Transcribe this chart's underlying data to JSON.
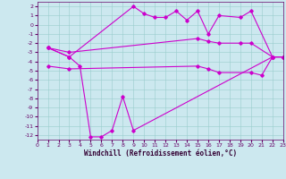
{
  "xlabel": "Windchill (Refroidissement éolien,°C)",
  "xlim": [
    0,
    23
  ],
  "ylim": [
    -12.5,
    2.5
  ],
  "yticks": [
    2,
    1,
    0,
    -1,
    -2,
    -3,
    -4,
    -5,
    -6,
    -7,
    -8,
    -9,
    -10,
    -11,
    -12
  ],
  "xticks": [
    0,
    1,
    2,
    3,
    4,
    5,
    6,
    7,
    8,
    9,
    10,
    11,
    12,
    13,
    14,
    15,
    16,
    17,
    18,
    19,
    20,
    21,
    22,
    23
  ],
  "bg_color": "#cce8ef",
  "line_color": "#cc00cc",
  "grid_color": "#99cccc",
  "lines": [
    {
      "x": [
        1,
        3,
        9,
        10,
        11,
        12,
        13,
        14,
        15,
        16,
        17,
        19,
        20,
        22,
        23
      ],
      "y": [
        -2.5,
        -3.5,
        2.0,
        1.2,
        0.8,
        0.8,
        1.5,
        0.5,
        1.5,
        -1.0,
        1.0,
        0.8,
        1.5,
        -3.5,
        -3.5
      ]
    },
    {
      "x": [
        1,
        3,
        4,
        5,
        6,
        7,
        8,
        9,
        22,
        23
      ],
      "y": [
        -2.5,
        -3.5,
        -4.5,
        -12.2,
        -12.2,
        -11.5,
        -7.8,
        -11.5,
        -3.5,
        -3.5
      ]
    },
    {
      "x": [
        1,
        3,
        15,
        16,
        17,
        19,
        20,
        22,
        23
      ],
      "y": [
        -2.5,
        -3.0,
        -1.5,
        -1.8,
        -2.0,
        -2.0,
        -2.0,
        -3.5,
        -3.5
      ]
    },
    {
      "x": [
        1,
        3,
        15,
        16,
        17,
        20,
        21,
        22,
        23
      ],
      "y": [
        -4.5,
        -4.8,
        -4.5,
        -4.8,
        -5.2,
        -5.2,
        -5.5,
        -3.5,
        -3.5
      ]
    }
  ]
}
